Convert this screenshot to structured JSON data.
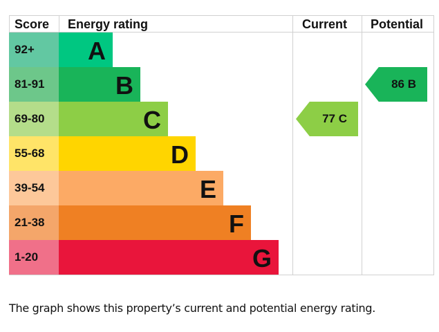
{
  "chart_data": {
    "type": "table",
    "headers": {
      "score": "Score",
      "rating": "Energy rating",
      "current": "Current",
      "potential": "Potential"
    },
    "bands": [
      {
        "score": "92+",
        "letter": "A",
        "color": "#00c781",
        "light": "#62c8a2"
      },
      {
        "score": "81-91",
        "letter": "B",
        "color": "#19b459",
        "light": "#6dc78a"
      },
      {
        "score": "69-80",
        "letter": "C",
        "color": "#8dce46",
        "light": "#b4dd8a"
      },
      {
        "score": "55-68",
        "letter": "D",
        "color": "#ffd500",
        "light": "#ffe468"
      },
      {
        "score": "39-54",
        "letter": "E",
        "color": "#fcaa65",
        "light": "#fdc89a"
      },
      {
        "score": "21-38",
        "letter": "F",
        "color": "#ef8023",
        "light": "#f4a66a"
      },
      {
        "score": "1-20",
        "letter": "G",
        "color": "#e9153b",
        "light": "#f07089"
      }
    ],
    "current": {
      "value": 77,
      "letter": "C",
      "label": "77  C",
      "color": "#8dce46"
    },
    "potential": {
      "value": 86,
      "letter": "B",
      "label": "86  B",
      "color": "#19b459"
    }
  },
  "caption": "The graph shows this property’s current and potential energy rating."
}
